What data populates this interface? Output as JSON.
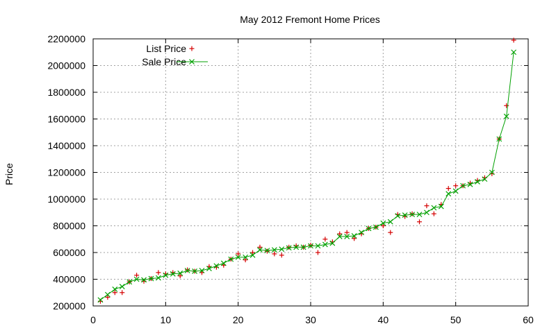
{
  "chart_data": {
    "type": "line",
    "title": "May 2012 Fremont Home Prices",
    "xlabel": "",
    "ylabel": "Price",
    "xlim": [
      0,
      60
    ],
    "ylim": [
      200000,
      2200000
    ],
    "x_ticks": [
      "0",
      "10",
      "20",
      "30",
      "40",
      "50",
      "60"
    ],
    "y_ticks": [
      "200000",
      "400000",
      "600000",
      "800000",
      "1000000",
      "1200000",
      "1400000",
      "1600000",
      "1800000",
      "2000000",
      "2200000"
    ],
    "grid": true,
    "legend_position": "top-left",
    "x": [
      1,
      2,
      3,
      4,
      5,
      6,
      7,
      8,
      9,
      10,
      11,
      12,
      13,
      14,
      15,
      16,
      17,
      18,
      19,
      20,
      21,
      22,
      23,
      24,
      25,
      26,
      27,
      28,
      29,
      30,
      31,
      32,
      33,
      34,
      35,
      36,
      37,
      38,
      39,
      40,
      41,
      42,
      43,
      44,
      45,
      46,
      47,
      48,
      49,
      50,
      51,
      52,
      53,
      54,
      55,
      56,
      57,
      58
    ],
    "series": [
      {
        "name": "List Price",
        "style": "points",
        "marker": "plus",
        "color": "#d40000",
        "values": [
          235000,
          265000,
          300000,
          300000,
          380000,
          430000,
          385000,
          405000,
          450000,
          440000,
          450000,
          425000,
          470000,
          460000,
          450000,
          495000,
          490000,
          505000,
          550000,
          590000,
          545000,
          600000,
          640000,
          610000,
          590000,
          580000,
          640000,
          650000,
          640000,
          655000,
          600000,
          700000,
          680000,
          740000,
          750000,
          705000,
          740000,
          780000,
          790000,
          800000,
          750000,
          885000,
          870000,
          890000,
          830000,
          950000,
          890000,
          960000,
          1080000,
          1100000,
          1100000,
          1120000,
          1140000,
          1160000,
          1190000,
          1450000,
          1700000,
          2190000
        ]
      },
      {
        "name": "Sale Price",
        "style": "linespoints",
        "marker": "cross",
        "color": "#00a000",
        "values": [
          245000,
          285000,
          325000,
          345000,
          380000,
          400000,
          395000,
          405000,
          410000,
          430000,
          440000,
          445000,
          465000,
          460000,
          465000,
          480000,
          500000,
          520000,
          550000,
          565000,
          565000,
          580000,
          620000,
          615000,
          620000,
          625000,
          635000,
          640000,
          640000,
          650000,
          650000,
          660000,
          670000,
          720000,
          720000,
          725000,
          750000,
          780000,
          790000,
          820000,
          830000,
          875000,
          880000,
          885000,
          885000,
          900000,
          935000,
          945000,
          1040000,
          1060000,
          1100000,
          1110000,
          1130000,
          1150000,
          1200000,
          1450000,
          1620000,
          2100000
        ]
      }
    ]
  }
}
